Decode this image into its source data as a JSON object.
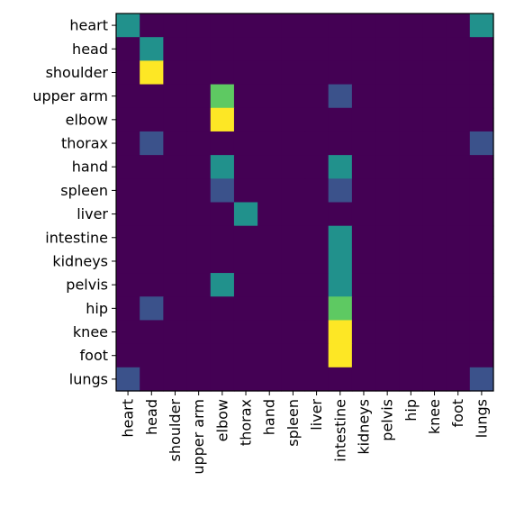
{
  "chart_data": {
    "type": "heatmap",
    "title": "",
    "xlabel": "",
    "ylabel": "",
    "colormap": "viridis",
    "value_range": [
      0,
      1
    ],
    "grid": false,
    "legend": "none",
    "x_categories": [
      "heart",
      "head",
      "shoulder",
      "upper arm",
      "elbow",
      "thorax",
      "hand",
      "spleen",
      "liver",
      "intestine",
      "kidneys",
      "pelvis",
      "hip",
      "knee",
      "foot",
      "lungs"
    ],
    "y_categories": [
      "heart",
      "head",
      "shoulder",
      "upper arm",
      "elbow",
      "thorax",
      "hand",
      "spleen",
      "liver",
      "intestine",
      "kidneys",
      "pelvis",
      "hip",
      "knee",
      "foot",
      "lungs"
    ],
    "values": [
      [
        0.5,
        0,
        0,
        0,
        0,
        0,
        0,
        0,
        0,
        0,
        0,
        0,
        0,
        0,
        0,
        0.5
      ],
      [
        0,
        0.5,
        0,
        0,
        0,
        0,
        0,
        0,
        0,
        0,
        0,
        0,
        0,
        0,
        0,
        0
      ],
      [
        0,
        1,
        0,
        0,
        0,
        0,
        0,
        0,
        0,
        0,
        0,
        0,
        0,
        0,
        0,
        0
      ],
      [
        0,
        0,
        0,
        0,
        0.75,
        0,
        0,
        0,
        0,
        0.25,
        0,
        0,
        0,
        0,
        0,
        0
      ],
      [
        0,
        0,
        0,
        0,
        1,
        0,
        0,
        0,
        0,
        0,
        0,
        0,
        0,
        0,
        0,
        0
      ],
      [
        0,
        0.25,
        0,
        0,
        0,
        0,
        0,
        0,
        0,
        0,
        0,
        0,
        0,
        0,
        0,
        0.25
      ],
      [
        0,
        0,
        0,
        0,
        0.5,
        0,
        0,
        0,
        0,
        0.5,
        0,
        0,
        0,
        0,
        0,
        0
      ],
      [
        0,
        0,
        0,
        0,
        0.25,
        0,
        0,
        0,
        0,
        0.25,
        0,
        0,
        0,
        0,
        0,
        0
      ],
      [
        0,
        0,
        0,
        0,
        0,
        0.5,
        0,
        0,
        0,
        0,
        0,
        0,
        0,
        0,
        0,
        0
      ],
      [
        0,
        0,
        0,
        0,
        0,
        0,
        0,
        0,
        0,
        0.5,
        0,
        0,
        0,
        0,
        0,
        0
      ],
      [
        0,
        0,
        0,
        0,
        0,
        0,
        0,
        0,
        0,
        0.5,
        0,
        0,
        0,
        0,
        0,
        0
      ],
      [
        0,
        0,
        0,
        0,
        0.5,
        0,
        0,
        0,
        0,
        0.5,
        0,
        0,
        0,
        0,
        0,
        0
      ],
      [
        0,
        0.25,
        0,
        0,
        0,
        0,
        0,
        0,
        0,
        0.75,
        0,
        0,
        0,
        0,
        0,
        0
      ],
      [
        0,
        0,
        0,
        0,
        0,
        0,
        0,
        0,
        0,
        1,
        0,
        0,
        0,
        0,
        0,
        0
      ],
      [
        0,
        0,
        0,
        0,
        0,
        0,
        0,
        0,
        0,
        1,
        0,
        0,
        0,
        0,
        0,
        0
      ],
      [
        0.25,
        0,
        0,
        0,
        0,
        0,
        0,
        0,
        0,
        0,
        0,
        0,
        0,
        0,
        0,
        0.25
      ]
    ]
  }
}
